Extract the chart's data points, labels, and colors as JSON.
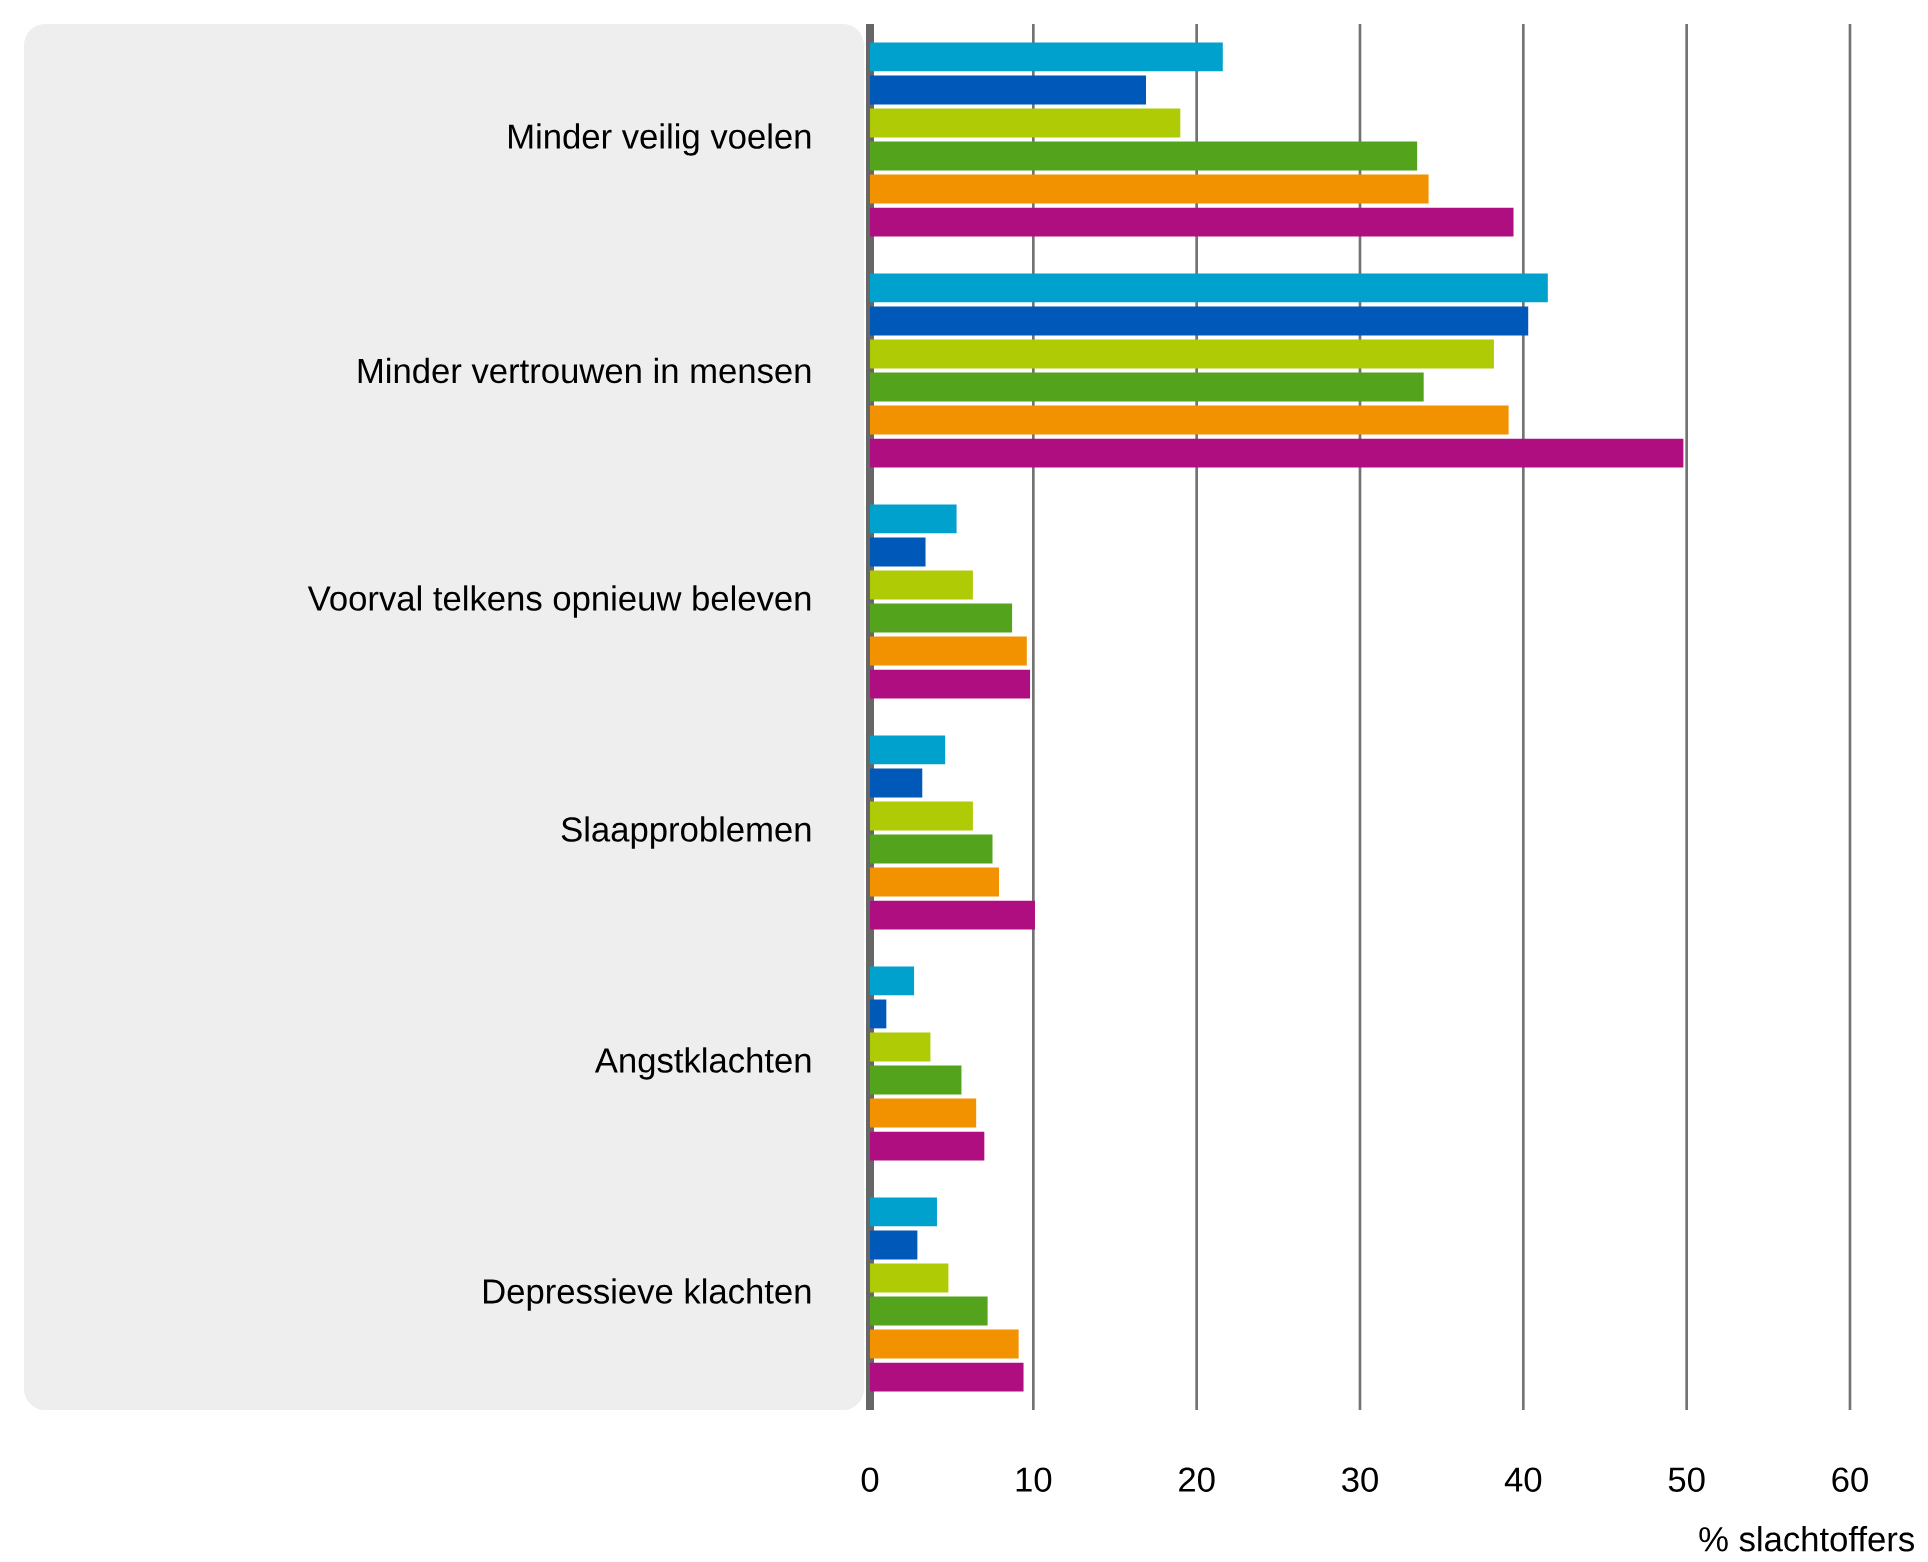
{
  "chart_data": {
    "type": "bar",
    "orientation": "horizontal",
    "xlabel": "% slachtoffers",
    "categories": [
      "Minder veilig voelen",
      "Minder vertrouwen in mensen",
      "Voorval telkens opnieuw beleven",
      "Slaapproblemen",
      "Angstklachten",
      "Depressieve klachten"
    ],
    "series": [
      {
        "color": "#00a1cd",
        "values": [
          21.6,
          41.5,
          5.3,
          4.6,
          2.7,
          4.1
        ]
      },
      {
        "color": "#0058b8",
        "values": [
          16.9,
          40.3,
          3.4,
          3.2,
          1.0,
          2.9
        ]
      },
      {
        "color": "#afcb05",
        "values": [
          19.0,
          38.2,
          6.3,
          6.3,
          3.7,
          4.8
        ]
      },
      {
        "color": "#53a31d",
        "values": [
          33.5,
          33.9,
          8.7,
          7.5,
          5.6,
          7.2
        ]
      },
      {
        "color": "#f39200",
        "values": [
          34.2,
          39.1,
          9.6,
          7.9,
          6.5,
          9.1
        ]
      },
      {
        "color": "#af0e80",
        "values": [
          39.4,
          49.8,
          9.8,
          10.1,
          7.0,
          9.4
        ]
      }
    ],
    "xlim": [
      0,
      60
    ],
    "xticks": [
      0,
      10,
      20,
      30,
      40,
      50,
      60
    ],
    "grid": "x"
  }
}
